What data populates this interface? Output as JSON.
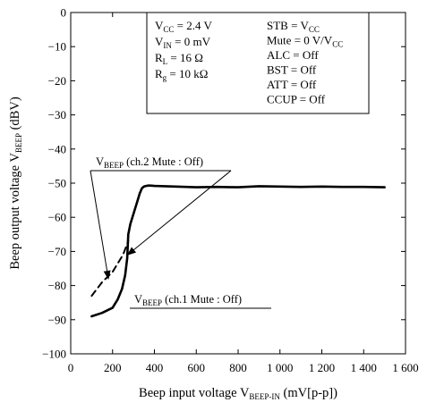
{
  "chart_data": {
    "type": "line",
    "xlabel": {
      "main": "Beep input voltage  V",
      "sub": "BEEP-IN",
      "unit": "  (mV[p-p])"
    },
    "ylabel": {
      "main": "Beep output voltage  V",
      "sub": "BEEP",
      "unit": "  (dBV)"
    },
    "xlim": [
      0,
      1600
    ],
    "ylim": [
      -100,
      0
    ],
    "x_ticks": [
      0,
      200,
      400,
      600,
      800,
      1000,
      1200,
      1400,
      1600
    ],
    "x_tick_labels": [
      "0",
      "200",
      "400",
      "600",
      "800",
      "1 000",
      "1 200",
      "1 400",
      "1 600"
    ],
    "y_ticks": [
      0,
      -10,
      -20,
      -30,
      -40,
      -50,
      -60,
      -70,
      -80,
      -90,
      -100
    ],
    "y_tick_labels": [
      "0",
      "−10",
      "−20",
      "−30",
      "−40",
      "−50",
      "−60",
      "−70",
      "−80",
      "−90",
      "−100"
    ],
    "grid": false,
    "conditions_left": [
      {
        "main": "V",
        "sub": "CC",
        "rest": " = 2.4 V"
      },
      {
        "main": "V",
        "sub": "IN",
        "rest": " = 0 mV"
      },
      {
        "main": "R",
        "sub": "L",
        "rest": " = 16 Ω"
      },
      {
        "main": "R",
        "sub": "g",
        "rest": " = 10 kΩ"
      }
    ],
    "conditions_right": [
      {
        "main": "STB = V",
        "sub": "CC",
        "rest": ""
      },
      {
        "main": "Mute = 0 V/V",
        "sub": "CC",
        "rest": ""
      },
      {
        "main": "ALC = Off",
        "sub": "",
        "rest": ""
      },
      {
        "main": "BST = Off",
        "sub": "",
        "rest": ""
      },
      {
        "main": "ATT = Off",
        "sub": "",
        "rest": ""
      },
      {
        "main": "CCUP = Off",
        "sub": "",
        "rest": ""
      }
    ],
    "series": [
      {
        "label": {
          "main": "V",
          "sub": "BEEP",
          "rest": " (ch.1 Mute : Off)"
        },
        "style": "solid",
        "x": [
          100,
          150,
          200,
          225,
          245,
          260,
          270,
          275,
          285,
          300,
          320,
          330,
          340,
          350,
          360,
          370,
          380,
          400,
          500,
          600,
          700,
          800,
          900,
          1000,
          1100,
          1200,
          1300,
          1400,
          1500
        ],
        "y": [
          -89,
          -88,
          -86.5,
          -84,
          -81,
          -77,
          -72,
          -65,
          -62,
          -59,
          -55,
          -53,
          -51.5,
          -51,
          -50.8,
          -50.7,
          -50.7,
          -50.8,
          -51,
          -51.2,
          -51.1,
          -51.2,
          -50.9,
          -51,
          -51.1,
          -51,
          -51.1,
          -51.1,
          -51.2
        ]
      },
      {
        "label": {
          "main": "V",
          "sub": "BEEP",
          "rest": " (ch.2 Mute : Off)"
        },
        "style": "dashed",
        "x": [
          100,
          150,
          200,
          250,
          275
        ],
        "y": [
          -83,
          -79,
          -76,
          -71,
          -67
        ]
      }
    ]
  }
}
